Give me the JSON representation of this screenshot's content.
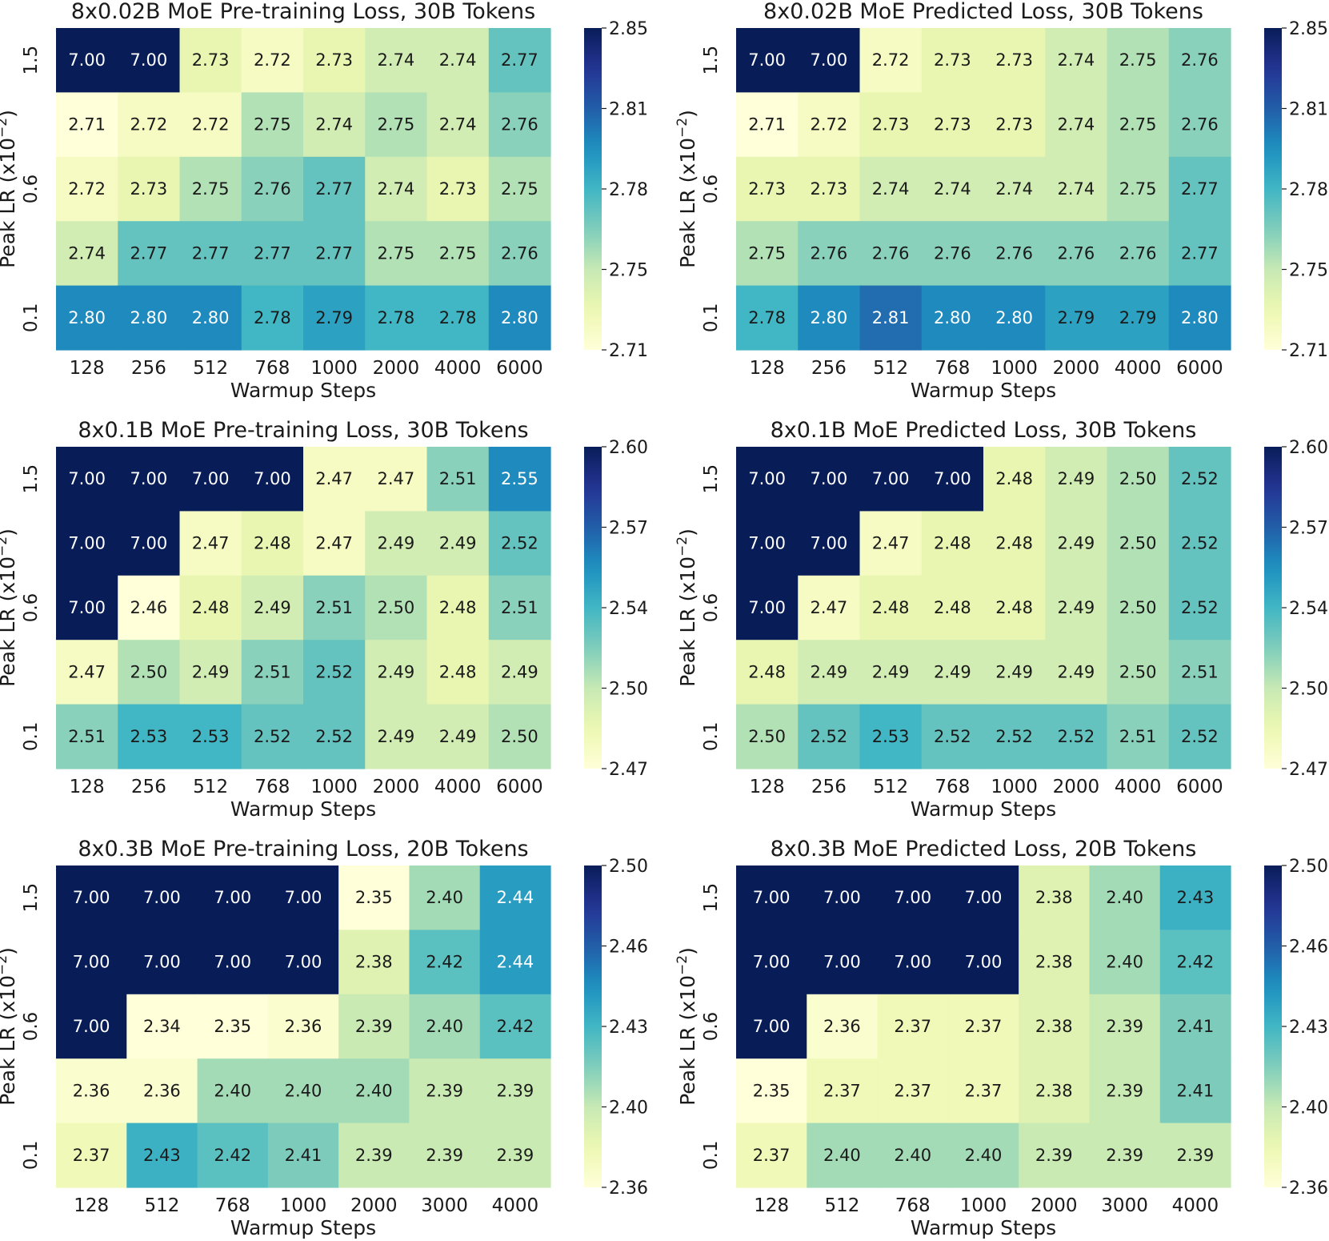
{
  "chart_data": [
    {
      "type": "heatmap",
      "title": "8x0.02B MoE Pre-training Loss, 30B Tokens",
      "xlabel": "Warmup Steps",
      "ylabel": "Peak LR (x10^-2)",
      "x": [
        "128",
        "256",
        "512",
        "768",
        "1000",
        "2000",
        "4000",
        "6000"
      ],
      "y": [
        "1.5",
        "",
        "0.6",
        "",
        "0.1"
      ],
      "z": [
        [
          7.0,
          7.0,
          2.73,
          2.72,
          2.73,
          2.74,
          2.74,
          2.77
        ],
        [
          2.71,
          2.72,
          2.72,
          2.75,
          2.74,
          2.75,
          2.74,
          2.76
        ],
        [
          2.72,
          2.73,
          2.75,
          2.76,
          2.77,
          2.74,
          2.73,
          2.75
        ],
        [
          2.74,
          2.77,
          2.77,
          2.77,
          2.77,
          2.75,
          2.75,
          2.76
        ],
        [
          2.8,
          2.8,
          2.8,
          2.78,
          2.79,
          2.78,
          2.78,
          2.8
        ]
      ],
      "cells_text": [
        [
          "7.00",
          "7.00",
          "2.73",
          "2.72",
          "2.73",
          "2.74",
          "2.74",
          "2.77"
        ],
        [
          "2.71",
          "2.72",
          "2.72",
          "2.75",
          "2.74",
          "2.75",
          "2.74",
          "2.76"
        ],
        [
          "2.72",
          "2.73",
          "2.75",
          "2.76",
          "2.77",
          "2.74",
          "2.73",
          "2.75"
        ],
        [
          "2.74",
          "2.77",
          "2.77",
          "2.77",
          "2.77",
          "2.75",
          "2.75",
          "2.76"
        ],
        [
          "2.80",
          "2.80",
          "2.80",
          "2.78",
          "2.79",
          "2.78",
          "2.78",
          "2.80"
        ]
      ],
      "vmin": 2.71,
      "vmax": 2.85,
      "colorbar_ticks": [
        "2.85",
        "2.81",
        "2.78",
        "2.75",
        "2.71"
      ],
      "colormap": "YlGnBu"
    },
    {
      "type": "heatmap",
      "title": "8x0.02B MoE Predicted Loss, 30B Tokens",
      "xlabel": "Warmup Steps",
      "ylabel": "Peak LR (x10^-2)",
      "x": [
        "128",
        "256",
        "512",
        "768",
        "1000",
        "2000",
        "4000",
        "6000"
      ],
      "y": [
        "1.5",
        "",
        "0.6",
        "",
        "0.1"
      ],
      "z": [
        [
          7.0,
          7.0,
          2.72,
          2.73,
          2.73,
          2.74,
          2.75,
          2.76
        ],
        [
          2.71,
          2.72,
          2.73,
          2.73,
          2.73,
          2.74,
          2.75,
          2.76
        ],
        [
          2.73,
          2.73,
          2.74,
          2.74,
          2.74,
          2.74,
          2.75,
          2.77
        ],
        [
          2.75,
          2.76,
          2.76,
          2.76,
          2.76,
          2.76,
          2.76,
          2.77
        ],
        [
          2.78,
          2.8,
          2.81,
          2.8,
          2.8,
          2.79,
          2.79,
          2.8
        ]
      ],
      "cells_text": [
        [
          "7.00",
          "7.00",
          "2.72",
          "2.73",
          "2.73",
          "2.74",
          "2.75",
          "2.76"
        ],
        [
          "2.71",
          "2.72",
          "2.73",
          "2.73",
          "2.73",
          "2.74",
          "2.75",
          "2.76"
        ],
        [
          "2.73",
          "2.73",
          "2.74",
          "2.74",
          "2.74",
          "2.74",
          "2.75",
          "2.77"
        ],
        [
          "2.75",
          "2.76",
          "2.76",
          "2.76",
          "2.76",
          "2.76",
          "2.76",
          "2.77"
        ],
        [
          "2.78",
          "2.80",
          "2.81",
          "2.80",
          "2.80",
          "2.79",
          "2.79",
          "2.80"
        ]
      ],
      "vmin": 2.71,
      "vmax": 2.85,
      "colorbar_ticks": [
        "2.85",
        "2.81",
        "2.78",
        "2.75",
        "2.71"
      ],
      "colormap": "YlGnBu"
    },
    {
      "type": "heatmap",
      "title": "8x0.1B MoE Pre-training Loss, 30B Tokens",
      "xlabel": "Warmup Steps",
      "ylabel": "Peak LR (x10^-2)",
      "x": [
        "128",
        "256",
        "512",
        "768",
        "1000",
        "2000",
        "4000",
        "6000"
      ],
      "y": [
        "1.5",
        "",
        "0.6",
        "",
        "0.1"
      ],
      "z": [
        [
          7.0,
          7.0,
          7.0,
          7.0,
          2.47,
          2.47,
          2.51,
          2.55
        ],
        [
          7.0,
          7.0,
          2.47,
          2.48,
          2.47,
          2.49,
          2.49,
          2.52
        ],
        [
          7.0,
          2.46,
          2.48,
          2.49,
          2.51,
          2.5,
          2.48,
          2.51
        ],
        [
          2.47,
          2.5,
          2.49,
          2.51,
          2.52,
          2.49,
          2.48,
          2.49
        ],
        [
          2.51,
          2.53,
          2.53,
          2.52,
          2.52,
          2.49,
          2.49,
          2.5
        ]
      ],
      "cells_text": [
        [
          "7.00",
          "7.00",
          "7.00",
          "7.00",
          "2.47",
          "2.47",
          "2.51",
          "2.55"
        ],
        [
          "7.00",
          "7.00",
          "2.47",
          "2.48",
          "2.47",
          "2.49",
          "2.49",
          "2.52"
        ],
        [
          "7.00",
          "2.46",
          "2.48",
          "2.49",
          "2.51",
          "2.50",
          "2.48",
          "2.51"
        ],
        [
          "2.47",
          "2.50",
          "2.49",
          "2.51",
          "2.52",
          "2.49",
          "2.48",
          "2.49"
        ],
        [
          "2.51",
          "2.53",
          "2.53",
          "2.52",
          "2.52",
          "2.49",
          "2.49",
          "2.50"
        ]
      ],
      "vmin": 2.46,
      "vmax": 2.6,
      "colorbar_ticks": [
        "2.60",
        "2.57",
        "2.54",
        "2.50",
        "2.47"
      ],
      "colormap": "YlGnBu"
    },
    {
      "type": "heatmap",
      "title": "8x0.1B MoE Predicted Loss, 30B Tokens",
      "xlabel": "Warmup Steps",
      "ylabel": "Peak LR (x10^-2)",
      "x": [
        "128",
        "256",
        "512",
        "768",
        "1000",
        "2000",
        "4000",
        "6000"
      ],
      "y": [
        "1.5",
        "",
        "0.6",
        "",
        "0.1"
      ],
      "z": [
        [
          7.0,
          7.0,
          7.0,
          7.0,
          2.48,
          2.49,
          2.5,
          2.52
        ],
        [
          7.0,
          7.0,
          2.47,
          2.48,
          2.48,
          2.49,
          2.5,
          2.52
        ],
        [
          7.0,
          2.47,
          2.48,
          2.48,
          2.48,
          2.49,
          2.5,
          2.52
        ],
        [
          2.48,
          2.49,
          2.49,
          2.49,
          2.49,
          2.49,
          2.5,
          2.51
        ],
        [
          2.5,
          2.52,
          2.53,
          2.52,
          2.52,
          2.52,
          2.51,
          2.52
        ]
      ],
      "cells_text": [
        [
          "7.00",
          "7.00",
          "7.00",
          "7.00",
          "2.48",
          "2.49",
          "2.50",
          "2.52"
        ],
        [
          "7.00",
          "7.00",
          "2.47",
          "2.48",
          "2.48",
          "2.49",
          "2.50",
          "2.52"
        ],
        [
          "7.00",
          "2.47",
          "2.48",
          "2.48",
          "2.48",
          "2.49",
          "2.50",
          "2.52"
        ],
        [
          "2.48",
          "2.49",
          "2.49",
          "2.49",
          "2.49",
          "2.49",
          "2.50",
          "2.51"
        ],
        [
          "2.50",
          "2.52",
          "2.53",
          "2.52",
          "2.52",
          "2.52",
          "2.51",
          "2.52"
        ]
      ],
      "vmin": 2.46,
      "vmax": 2.6,
      "colorbar_ticks": [
        "2.60",
        "2.57",
        "2.54",
        "2.50",
        "2.47"
      ],
      "colormap": "YlGnBu"
    },
    {
      "type": "heatmap",
      "title": "8x0.3B MoE Pre-training Loss, 20B Tokens",
      "xlabel": "Warmup Steps",
      "ylabel": "Peak LR (x10^-2)",
      "x": [
        "128",
        "512",
        "768",
        "1000",
        "2000",
        "3000",
        "4000"
      ],
      "y": [
        "1.5",
        "",
        "0.6",
        "",
        "0.1"
      ],
      "z": [
        [
          7.0,
          7.0,
          7.0,
          7.0,
          2.35,
          2.4,
          2.44
        ],
        [
          7.0,
          7.0,
          7.0,
          7.0,
          2.38,
          2.42,
          2.44
        ],
        [
          7.0,
          2.34,
          2.35,
          2.36,
          2.39,
          2.4,
          2.42
        ],
        [
          2.36,
          2.36,
          2.4,
          2.4,
          2.4,
          2.39,
          2.39
        ],
        [
          2.37,
          2.43,
          2.42,
          2.41,
          2.39,
          2.39,
          2.39
        ]
      ],
      "cells_text": [
        [
          "7.00",
          "7.00",
          "7.00",
          "7.00",
          "2.35",
          "2.40",
          "2.44"
        ],
        [
          "7.00",
          "7.00",
          "7.00",
          "7.00",
          "2.38",
          "2.42",
          "2.44"
        ],
        [
          "7.00",
          "2.34",
          "2.35",
          "2.36",
          "2.39",
          "2.40",
          "2.42"
        ],
        [
          "2.36",
          "2.36",
          "2.40",
          "2.40",
          "2.40",
          "2.39",
          "2.39"
        ],
        [
          "2.37",
          "2.43",
          "2.42",
          "2.41",
          "2.39",
          "2.39",
          "2.39"
        ]
      ],
      "vmin": 2.355,
      "vmax": 2.5,
      "colorbar_ticks": [
        "2.50",
        "2.46",
        "2.43",
        "2.40",
        "2.36"
      ],
      "colormap": "YlGnBu"
    },
    {
      "type": "heatmap",
      "title": "8x0.3B MoE Predicted Loss, 20B Tokens",
      "xlabel": "Warmup Steps",
      "ylabel": "Peak LR (x10^-2)",
      "x": [
        "128",
        "512",
        "768",
        "1000",
        "2000",
        "3000",
        "4000"
      ],
      "y": [
        "1.5",
        "",
        "0.6",
        "",
        "0.1"
      ],
      "z": [
        [
          7.0,
          7.0,
          7.0,
          7.0,
          2.38,
          2.4,
          2.43
        ],
        [
          7.0,
          7.0,
          7.0,
          7.0,
          2.38,
          2.4,
          2.42
        ],
        [
          7.0,
          2.36,
          2.37,
          2.37,
          2.38,
          2.39,
          2.41
        ],
        [
          2.35,
          2.37,
          2.37,
          2.37,
          2.38,
          2.39,
          2.41
        ],
        [
          2.37,
          2.4,
          2.4,
          2.4,
          2.39,
          2.39,
          2.39
        ]
      ],
      "cells_text": [
        [
          "7.00",
          "7.00",
          "7.00",
          "7.00",
          "2.38",
          "2.40",
          "2.43"
        ],
        [
          "7.00",
          "7.00",
          "7.00",
          "7.00",
          "2.38",
          "2.40",
          "2.42"
        ],
        [
          "7.00",
          "2.36",
          "2.37",
          "2.37",
          "2.38",
          "2.39",
          "2.41"
        ],
        [
          "2.35",
          "2.37",
          "2.37",
          "2.37",
          "2.38",
          "2.39",
          "2.41"
        ],
        [
          "2.37",
          "2.40",
          "2.40",
          "2.40",
          "2.39",
          "2.39",
          "2.39"
        ]
      ],
      "vmin": 2.355,
      "vmax": 2.5,
      "colorbar_ticks": [
        "2.50",
        "2.46",
        "2.43",
        "2.40",
        "2.36"
      ],
      "colormap": "YlGnBu"
    }
  ]
}
